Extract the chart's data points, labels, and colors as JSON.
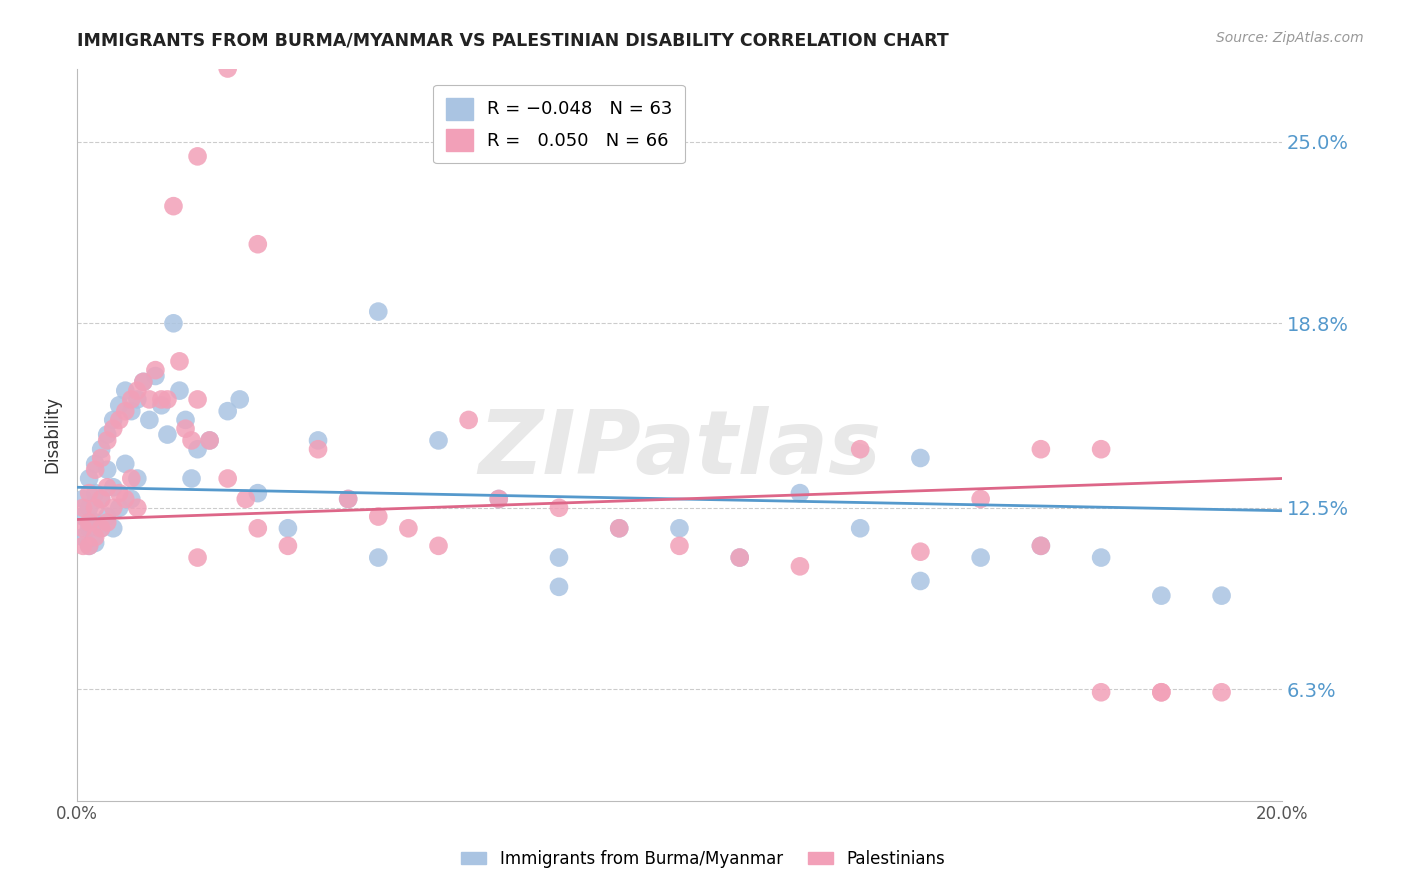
{
  "title": "IMMIGRANTS FROM BURMA/MYANMAR VS PALESTINIAN DISABILITY CORRELATION CHART",
  "source": "Source: ZipAtlas.com",
  "ylabel": "Disability",
  "ytick_labels": [
    "25.0%",
    "18.8%",
    "12.5%",
    "6.3%"
  ],
  "ytick_values": [
    0.25,
    0.188,
    0.125,
    0.063
  ],
  "xlim": [
    0.0,
    0.2
  ],
  "ylim": [
    0.025,
    0.275
  ],
  "legend_blue_R": "R = -0.048",
  "legend_blue_N": "N = 63",
  "legend_pink_R": "R =  0.050",
  "legend_pink_N": "N = 66",
  "blue_color": "#aac4e2",
  "pink_color": "#f2a0b8",
  "blue_line_color": "#5599cc",
  "pink_line_color": "#dd6688",
  "watermark": "ZIPatlas",
  "blue_scatter_x": [
    0.001,
    0.001,
    0.001,
    0.002,
    0.002,
    0.002,
    0.002,
    0.003,
    0.003,
    0.003,
    0.003,
    0.004,
    0.004,
    0.004,
    0.005,
    0.005,
    0.005,
    0.006,
    0.006,
    0.006,
    0.007,
    0.007,
    0.008,
    0.008,
    0.009,
    0.009,
    0.01,
    0.01,
    0.011,
    0.012,
    0.013,
    0.014,
    0.015,
    0.016,
    0.017,
    0.018,
    0.019,
    0.02,
    0.022,
    0.025,
    0.027,
    0.03,
    0.035,
    0.04,
    0.045,
    0.05,
    0.06,
    0.07,
    0.08,
    0.09,
    0.1,
    0.11,
    0.12,
    0.13,
    0.14,
    0.15,
    0.16,
    0.17,
    0.18,
    0.19,
    0.05,
    0.08,
    0.14
  ],
  "blue_scatter_y": [
    0.128,
    0.122,
    0.115,
    0.135,
    0.125,
    0.118,
    0.112,
    0.14,
    0.13,
    0.12,
    0.113,
    0.145,
    0.128,
    0.118,
    0.15,
    0.138,
    0.122,
    0.155,
    0.132,
    0.118,
    0.16,
    0.125,
    0.165,
    0.14,
    0.158,
    0.128,
    0.162,
    0.135,
    0.168,
    0.155,
    0.17,
    0.16,
    0.15,
    0.188,
    0.165,
    0.155,
    0.135,
    0.145,
    0.148,
    0.158,
    0.162,
    0.13,
    0.118,
    0.148,
    0.128,
    0.192,
    0.148,
    0.128,
    0.108,
    0.118,
    0.118,
    0.108,
    0.13,
    0.118,
    0.142,
    0.108,
    0.112,
    0.108,
    0.095,
    0.095,
    0.108,
    0.098,
    0.1
  ],
  "pink_scatter_x": [
    0.001,
    0.001,
    0.001,
    0.002,
    0.002,
    0.002,
    0.003,
    0.003,
    0.003,
    0.004,
    0.004,
    0.004,
    0.005,
    0.005,
    0.005,
    0.006,
    0.006,
    0.007,
    0.007,
    0.008,
    0.008,
    0.009,
    0.009,
    0.01,
    0.01,
    0.011,
    0.012,
    0.013,
    0.014,
    0.015,
    0.016,
    0.017,
    0.018,
    0.019,
    0.02,
    0.022,
    0.025,
    0.028,
    0.03,
    0.035,
    0.04,
    0.045,
    0.05,
    0.055,
    0.06,
    0.065,
    0.07,
    0.08,
    0.09,
    0.1,
    0.11,
    0.12,
    0.13,
    0.14,
    0.15,
    0.16,
    0.17,
    0.18,
    0.19,
    0.03,
    0.02,
    0.025,
    0.16,
    0.17,
    0.18,
    0.02
  ],
  "pink_scatter_y": [
    0.125,
    0.118,
    0.112,
    0.13,
    0.12,
    0.112,
    0.138,
    0.125,
    0.115,
    0.142,
    0.128,
    0.118,
    0.148,
    0.132,
    0.12,
    0.152,
    0.125,
    0.155,
    0.13,
    0.158,
    0.128,
    0.162,
    0.135,
    0.165,
    0.125,
    0.168,
    0.162,
    0.172,
    0.162,
    0.162,
    0.228,
    0.175,
    0.152,
    0.148,
    0.162,
    0.148,
    0.135,
    0.128,
    0.118,
    0.112,
    0.145,
    0.128,
    0.122,
    0.118,
    0.112,
    0.155,
    0.128,
    0.125,
    0.118,
    0.112,
    0.108,
    0.105,
    0.145,
    0.11,
    0.128,
    0.112,
    0.145,
    0.062,
    0.062,
    0.215,
    0.245,
    0.275,
    0.145,
    0.062,
    0.062,
    0.108
  ],
  "blue_line_x0": 0.0,
  "blue_line_x1": 0.2,
  "blue_line_y0": 0.132,
  "blue_line_y1": 0.124,
  "pink_line_x0": 0.0,
  "pink_line_x1": 0.2,
  "pink_line_y0": 0.121,
  "pink_line_y1": 0.135
}
